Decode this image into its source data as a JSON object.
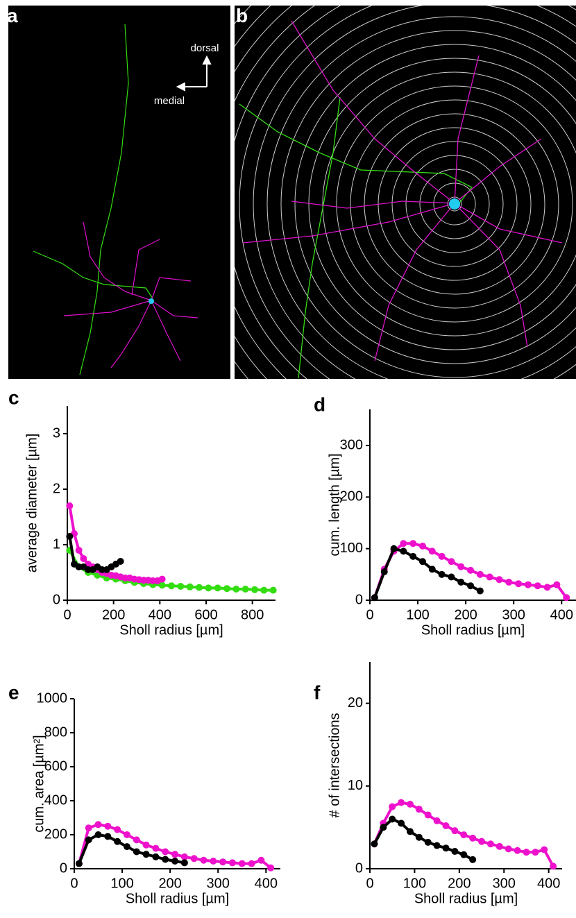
{
  "panel_a": {
    "label": "a",
    "dorsal": "dorsal",
    "medial": "medial"
  },
  "panel_b": {
    "label": "b"
  },
  "chart_data": [
    {
      "type": "line",
      "panel_label": "c",
      "xlabel": "Sholl radius [µm]",
      "ylabel": "average diameter [µm]",
      "xlim": [
        0,
        900
      ],
      "ylim": [
        0,
        3.5
      ],
      "xticks": [
        0,
        200,
        400,
        600,
        800
      ],
      "yticks": [
        0,
        1,
        2,
        3
      ],
      "series": [
        {
          "color": "#33dd11",
          "x": [
            10,
            50,
            90,
            130,
            170,
            210,
            250,
            290,
            330,
            370,
            410,
            450,
            490,
            530,
            570,
            610,
            650,
            690,
            730,
            770,
            810,
            850,
            890
          ],
          "values": [
            0.9,
            0.6,
            0.5,
            0.45,
            0.4,
            0.38,
            0.35,
            0.32,
            0.3,
            0.28,
            0.27,
            0.26,
            0.25,
            0.24,
            0.23,
            0.22,
            0.22,
            0.21,
            0.2,
            0.2,
            0.19,
            0.18,
            0.18
          ]
        },
        {
          "color": "#ee11cc",
          "x": [
            10,
            30,
            50,
            70,
            90,
            110,
            130,
            150,
            170,
            190,
            210,
            230,
            250,
            270,
            290,
            310,
            330,
            350,
            370,
            390,
            410
          ],
          "values": [
            1.7,
            1.2,
            0.9,
            0.75,
            0.65,
            0.6,
            0.55,
            0.5,
            0.48,
            0.45,
            0.44,
            0.42,
            0.4,
            0.4,
            0.38,
            0.37,
            0.36,
            0.36,
            0.35,
            0.35,
            0.38
          ]
        },
        {
          "color": "#000000",
          "x": [
            10,
            30,
            50,
            70,
            90,
            110,
            130,
            150,
            170,
            190,
            210,
            230
          ],
          "values": [
            1.15,
            0.65,
            0.6,
            0.6,
            0.55,
            0.55,
            0.6,
            0.55,
            0.55,
            0.6,
            0.65,
            0.7
          ]
        }
      ]
    },
    {
      "type": "line",
      "panel_label": "d",
      "xlabel": "Sholl radius [µm]",
      "ylabel": "cum. length [µm]",
      "xlim": [
        0,
        430
      ],
      "ylim": [
        0,
        370
      ],
      "xticks": [
        0,
        100,
        200,
        300,
        400
      ],
      "yticks": [
        0,
        100,
        200,
        300
      ],
      "series": [
        {
          "color": "#ee11cc",
          "x": [
            10,
            30,
            50,
            70,
            90,
            110,
            130,
            150,
            170,
            190,
            210,
            230,
            250,
            270,
            290,
            310,
            330,
            350,
            370,
            390,
            410
          ],
          "values": [
            5,
            60,
            95,
            110,
            110,
            105,
            95,
            85,
            75,
            65,
            58,
            50,
            45,
            40,
            35,
            32,
            30,
            28,
            25,
            30,
            5
          ]
        },
        {
          "color": "#000000",
          "x": [
            10,
            30,
            50,
            70,
            90,
            110,
            130,
            150,
            170,
            190,
            210,
            230
          ],
          "values": [
            5,
            55,
            100,
            95,
            85,
            75,
            60,
            50,
            45,
            35,
            28,
            18
          ]
        }
      ]
    },
    {
      "type": "line",
      "panel_label": "e",
      "xlabel": "Sholl radius [µm]",
      "ylabel": "cum. area [µm²]",
      "xlim": [
        0,
        430
      ],
      "ylim": [
        0,
        1000
      ],
      "xticks": [
        0,
        100,
        200,
        300,
        400
      ],
      "yticks": [
        0,
        200,
        400,
        600,
        800,
        1000
      ],
      "series": [
        {
          "color": "#ee11cc",
          "x": [
            10,
            30,
            50,
            70,
            90,
            110,
            130,
            150,
            170,
            190,
            210,
            230,
            250,
            270,
            290,
            310,
            330,
            350,
            370,
            390,
            410
          ],
          "values": [
            30,
            240,
            260,
            250,
            230,
            200,
            170,
            140,
            120,
            100,
            85,
            70,
            60,
            50,
            45,
            40,
            35,
            30,
            30,
            50,
            5
          ]
        },
        {
          "color": "#000000",
          "x": [
            10,
            30,
            50,
            70,
            90,
            110,
            130,
            150,
            170,
            190,
            210,
            230
          ],
          "values": [
            30,
            170,
            200,
            190,
            160,
            130,
            100,
            85,
            70,
            55,
            45,
            35
          ]
        }
      ]
    },
    {
      "type": "line",
      "panel_label": "f",
      "xlabel": "Sholl radius [µm]",
      "ylabel": "# of intersections",
      "xlim": [
        0,
        430
      ],
      "ylim": [
        0,
        25
      ],
      "xticks": [
        0,
        100,
        200,
        300,
        400
      ],
      "yticks": [
        0,
        10,
        20
      ],
      "series": [
        {
          "color": "#ee11cc",
          "x": [
            10,
            30,
            50,
            70,
            90,
            110,
            130,
            150,
            170,
            190,
            210,
            230,
            250,
            270,
            290,
            310,
            330,
            350,
            370,
            390,
            410
          ],
          "values": [
            3,
            5.5,
            7.5,
            8,
            7.8,
            7.2,
            6.5,
            5.8,
            5.2,
            4.6,
            4.1,
            3.7,
            3.3,
            3,
            2.7,
            2.4,
            2.2,
            2,
            2,
            2.3,
            0.3
          ]
        },
        {
          "color": "#000000",
          "x": [
            10,
            30,
            50,
            70,
            90,
            110,
            130,
            150,
            170,
            190,
            210,
            230
          ],
          "values": [
            3,
            5,
            6,
            5.5,
            4.5,
            3.8,
            3.2,
            2.8,
            2.5,
            2.1,
            1.7,
            1.1
          ]
        }
      ]
    }
  ]
}
